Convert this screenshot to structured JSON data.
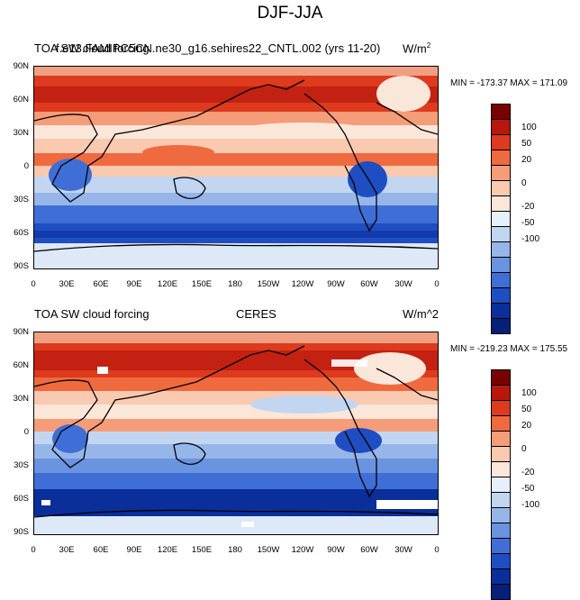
{
  "title": "DJF-JJA",
  "panels": [
    {
      "left_string": "TOA SW cloud forcing",
      "overlap_string": "f.e13.FAMIPC5CN.ne30_g16.sehires22_CNTL.002 (yrs 11-20)",
      "center_string": "",
      "right_string": "W/m",
      "right_sup": "2",
      "minmax": "MIN = -173.37 MAX = 171.09"
    },
    {
      "left_string": "TOA SW cloud forcing",
      "overlap_string": "",
      "center_string": "CERES",
      "right_string": "W/m^2",
      "right_sup": "",
      "minmax": "MIN = -219.23 MAX = 175.55"
    }
  ],
  "axes": {
    "lat_labels": [
      "90N",
      "60N",
      "30N",
      "0",
      "30S",
      "60S",
      "90S"
    ],
    "lon_labels": [
      "0",
      "30E",
      "60E",
      "90E",
      "120E",
      "150E",
      "180",
      "150W",
      "120W",
      "90W",
      "60W",
      "30W",
      "0"
    ]
  },
  "colorbar": {
    "labels": [
      "100",
      "50",
      "20",
      "0",
      "-20",
      "-50",
      "-100"
    ],
    "colors": [
      "#7a0000",
      "#b8170c",
      "#dd3a1e",
      "#f06a3f",
      "#f59c78",
      "#f9c9b0",
      "#fbe6da",
      "#e6f0fa",
      "#c2d6f2",
      "#96b6ea",
      "#6a93e0",
      "#3f6fd6",
      "#1f4ec2",
      "#0a2f9a",
      "#061f78"
    ]
  }
}
